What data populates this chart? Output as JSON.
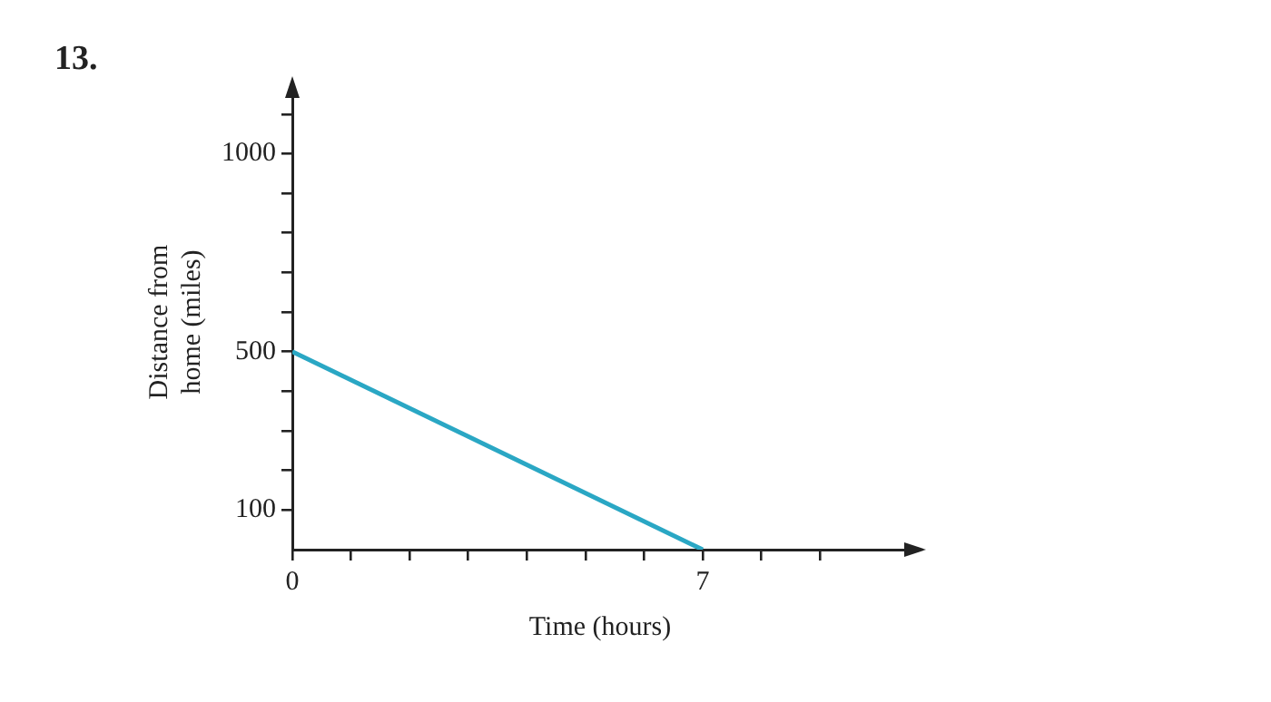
{
  "chart_data": {
    "type": "line",
    "xlabel": "Time (hours)",
    "ylabel": "Distance from home (miles)",
    "annotations": [
      "13."
    ],
    "x": [
      0,
      7
    ],
    "series": [
      {
        "color": "#2aa7c4",
        "values": [
          500,
          0
        ]
      }
    ],
    "xlim": [
      0,
      10.5
    ],
    "xticks": [
      {
        "value": 0,
        "label": "0"
      },
      {
        "value": 1,
        "label": null
      },
      {
        "value": 2,
        "label": null
      },
      {
        "value": 3,
        "label": null
      },
      {
        "value": 4,
        "label": null
      },
      {
        "value": 5,
        "label": null
      },
      {
        "value": 6,
        "label": null
      },
      {
        "value": 7,
        "label": "7"
      },
      {
        "value": 8,
        "label": null
      },
      {
        "value": 9,
        "label": null
      }
    ],
    "ylim": [
      0,
      1150
    ],
    "yticks": [
      {
        "value": 100,
        "label": "100"
      },
      {
        "value": 200,
        "label": null
      },
      {
        "value": 300,
        "label": null
      },
      {
        "value": 400,
        "label": null
      },
      {
        "value": 500,
        "label": "500"
      },
      {
        "value": 600,
        "label": null
      },
      {
        "value": 700,
        "label": null
      },
      {
        "value": 800,
        "label": null
      },
      {
        "value": 900,
        "label": null
      },
      {
        "value": 1000,
        "label": "1000"
      },
      {
        "value": 1100,
        "label": null
      }
    ],
    "grid": false,
    "legend": false,
    "marker": "none",
    "line_style": "solid"
  }
}
